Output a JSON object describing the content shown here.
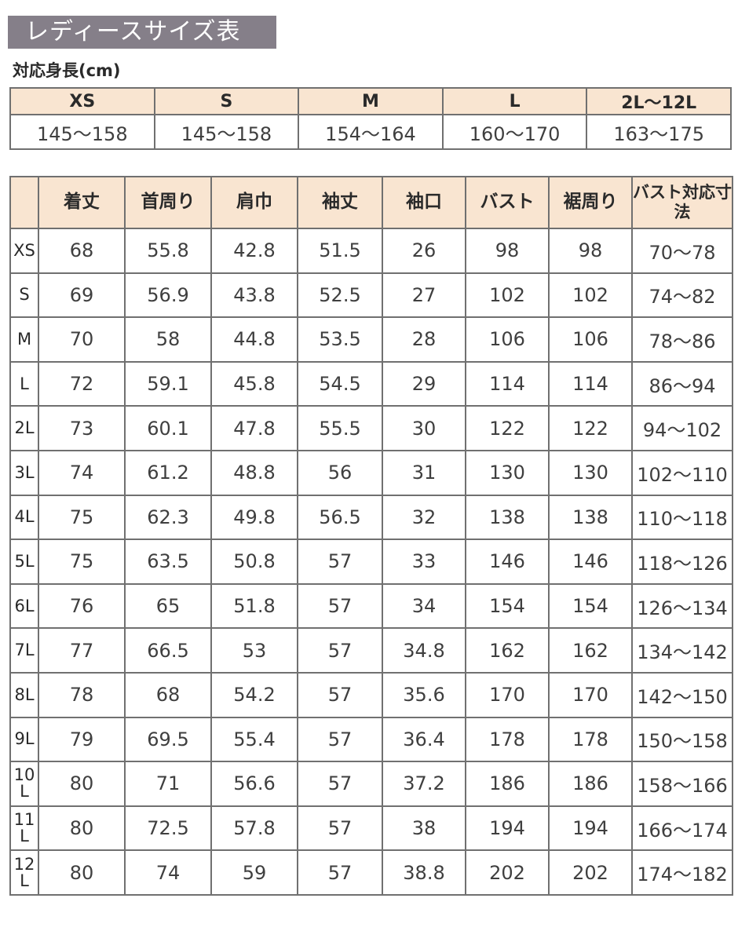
{
  "title": "レディースサイズ表",
  "height_table": {
    "label": "対応身長(cm)",
    "sizes": [
      "XS",
      "S",
      "M",
      "L",
      "2L〜12L"
    ],
    "heights": [
      "145〜158",
      "145〜158",
      "154〜164",
      "160〜170",
      "163〜175"
    ]
  },
  "size_table": {
    "headers": [
      "",
      "着丈",
      "首周り",
      "肩巾",
      "袖丈",
      "袖口",
      "バスト",
      "裾周り",
      "バスト対応寸法"
    ],
    "rows": [
      [
        "XS",
        "68",
        "55.8",
        "42.8",
        "51.5",
        "26",
        "98",
        "98",
        "70〜78"
      ],
      [
        "S",
        "69",
        "56.9",
        "43.8",
        "52.5",
        "27",
        "102",
        "102",
        "74〜82"
      ],
      [
        "M",
        "70",
        "58",
        "44.8",
        "53.5",
        "28",
        "106",
        "106",
        "78〜86"
      ],
      [
        "L",
        "72",
        "59.1",
        "45.8",
        "54.5",
        "29",
        "114",
        "114",
        "86〜94"
      ],
      [
        "2L",
        "73",
        "60.1",
        "47.8",
        "55.5",
        "30",
        "122",
        "122",
        "94〜102"
      ],
      [
        "3L",
        "74",
        "61.2",
        "48.8",
        "56",
        "31",
        "130",
        "130",
        "102〜110"
      ],
      [
        "4L",
        "75",
        "62.3",
        "49.8",
        "56.5",
        "32",
        "138",
        "138",
        "110〜118"
      ],
      [
        "5L",
        "75",
        "63.5",
        "50.8",
        "57",
        "33",
        "146",
        "146",
        "118〜126"
      ],
      [
        "6L",
        "76",
        "65",
        "51.8",
        "57",
        "34",
        "154",
        "154",
        "126〜134"
      ],
      [
        "7L",
        "77",
        "66.5",
        "53",
        "57",
        "34.8",
        "162",
        "162",
        "134〜142"
      ],
      [
        "8L",
        "78",
        "68",
        "54.2",
        "57",
        "35.6",
        "170",
        "170",
        "142〜150"
      ],
      [
        "9L",
        "79",
        "69.5",
        "55.4",
        "57",
        "36.4",
        "178",
        "178",
        "150〜158"
      ],
      [
        "10L",
        "80",
        "71",
        "56.6",
        "57",
        "37.2",
        "186",
        "186",
        "158〜166"
      ],
      [
        "11L",
        "80",
        "72.5",
        "57.8",
        "57",
        "38",
        "194",
        "194",
        "166〜174"
      ],
      [
        "12L",
        "80",
        "74",
        "59",
        "57",
        "38.8",
        "202",
        "202",
        "174〜182"
      ]
    ]
  },
  "colors": {
    "title_bg": "#857f89",
    "header_bg": "#f9e5d1",
    "border": "#707070"
  }
}
